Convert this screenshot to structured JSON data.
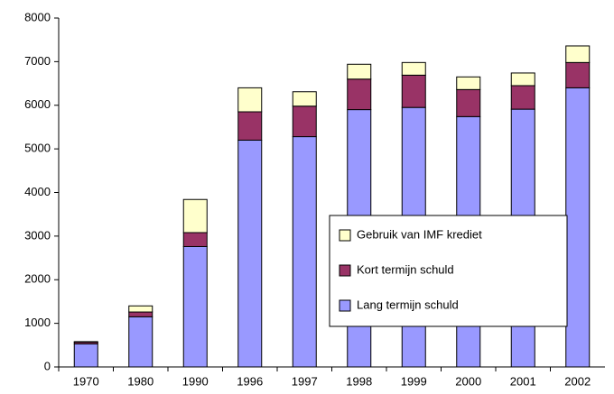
{
  "chart_data": {
    "type": "stacked_bar",
    "categories": [
      "1970",
      "1980",
      "1990",
      "1996",
      "1997",
      "1998",
      "1999",
      "2000",
      "2001",
      "2002"
    ],
    "series": [
      {
        "name": "Lang termijn schuld",
        "color": "#9999ff",
        "values": [
          530,
          1150,
          2760,
          5200,
          5280,
          5900,
          5950,
          5740,
          5910,
          6400
        ]
      },
      {
        "name": "Kort termijn schuld",
        "color": "#993366",
        "values": [
          40,
          110,
          320,
          650,
          700,
          700,
          740,
          620,
          540,
          580
        ]
      },
      {
        "name": "Gebruik van IMF krediet",
        "color": "#ffffcc",
        "values": [
          10,
          140,
          760,
          550,
          330,
          340,
          290,
          290,
          290,
          380
        ]
      }
    ],
    "ylim": [
      0,
      8000
    ],
    "yticks": [
      0,
      1000,
      2000,
      3000,
      4000,
      5000,
      6000,
      7000,
      8000
    ],
    "legend": "center-right"
  }
}
